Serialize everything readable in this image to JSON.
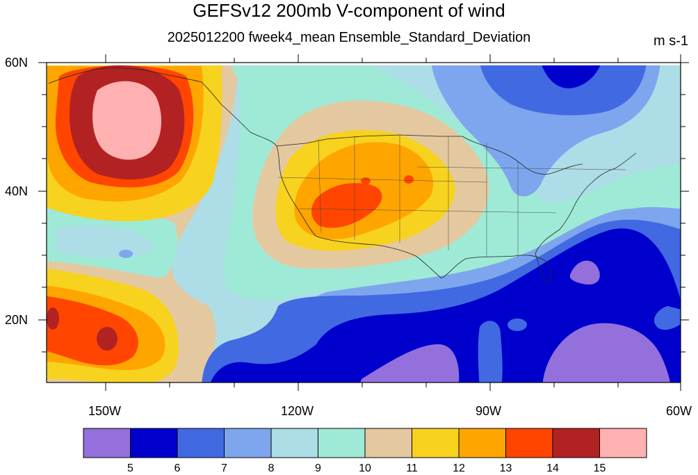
{
  "title": "GEFSv12 200mb V-component of wind",
  "subtitle": "2025012200 fweek4_mean Ensemble_Standard_Deviation",
  "units": "m s-1",
  "lat_labels": [
    "60N",
    "40N",
    "20N"
  ],
  "lon_labels": [
    "150W",
    "120W",
    "90W",
    "60W"
  ],
  "colorbar": {
    "colors": [
      "#9370DB",
      "#0000CD",
      "#4169E1",
      "#7EA6EE",
      "#ADDDE6",
      "#9EEAD6",
      "#E4C9A0",
      "#F7D21F",
      "#FFA500",
      "#FF4500",
      "#B22222",
      "#FFB0B0"
    ],
    "labels": [
      "5",
      "6",
      "7",
      "8",
      "9",
      "10",
      "11",
      "12",
      "13",
      "14",
      "15"
    ]
  }
}
